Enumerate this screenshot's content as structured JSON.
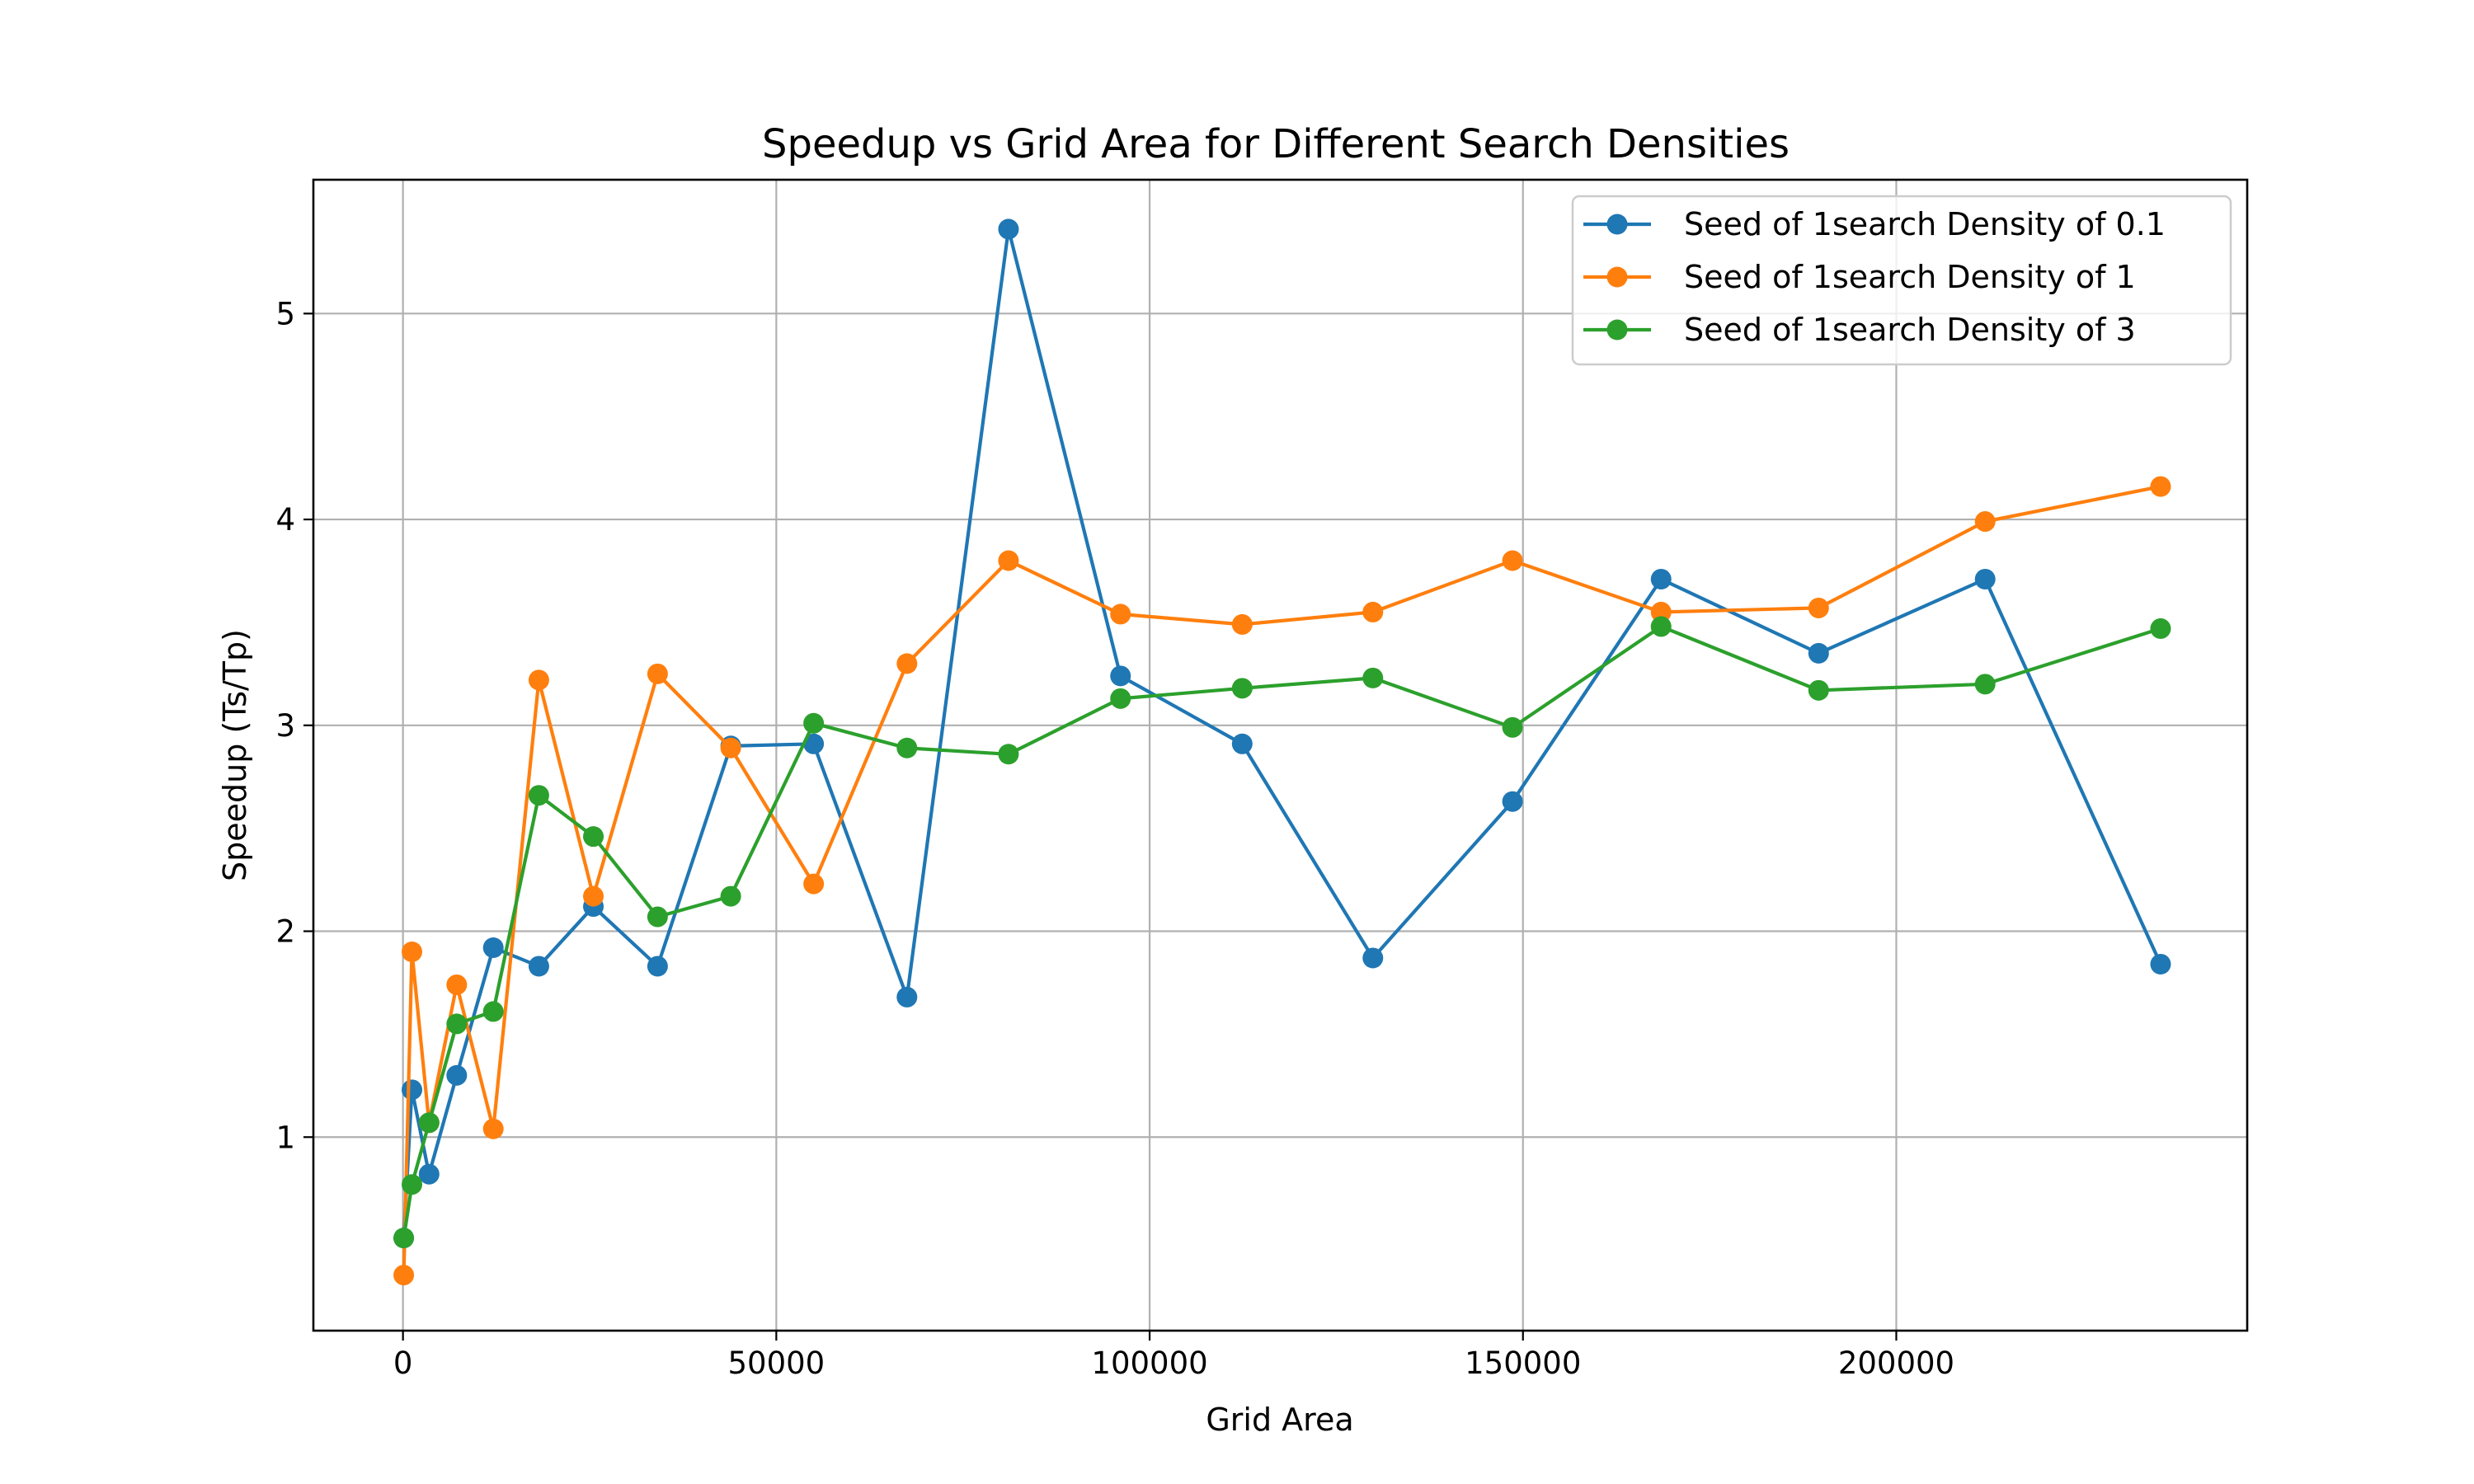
{
  "chart_data": {
    "type": "line",
    "title": "Speedup vs Grid Area for Different Search Densities",
    "xlabel": "Grid Area",
    "ylabel": "Speedup (Ts/Tp)",
    "xlim": [
      -12000,
      247000
    ],
    "ylim": [
      0.06,
      5.65
    ],
    "xticks": [
      0,
      50000,
      100000,
      150000,
      200000
    ],
    "xtick_labels": [
      "0",
      "50000",
      "100000",
      "150000",
      "200000"
    ],
    "yticks": [
      1,
      2,
      3,
      4,
      5
    ],
    "ytick_labels": [
      "1",
      "2",
      "3",
      "4",
      "5"
    ],
    "grid": true,
    "legend_position": "top-right",
    "series": [
      {
        "name": "Seed of 1search Density of 0.1",
        "color": "#1f77b4",
        "x": [
          100,
          1200,
          3500,
          7200,
          12100,
          18200,
          25500,
          34100,
          43900,
          55000,
          67500,
          81100,
          96100,
          112400,
          129900,
          148600,
          168500,
          189600,
          211900,
          235400
        ],
        "y": [
          0.51,
          1.23,
          0.82,
          1.3,
          1.92,
          1.83,
          2.12,
          1.83,
          2.9,
          2.91,
          1.68,
          5.41,
          3.24,
          2.91,
          1.87,
          2.63,
          3.71,
          3.35,
          3.71,
          1.84
        ]
      },
      {
        "name": "Seed of 1search Density of 1",
        "color": "#ff7f0e",
        "x": [
          100,
          1200,
          3500,
          7200,
          12100,
          18200,
          25500,
          34100,
          43900,
          55000,
          67500,
          81100,
          96100,
          112400,
          129900,
          148600,
          168500,
          189600,
          211900,
          235400
        ],
        "y": [
          0.33,
          1.9,
          1.07,
          1.74,
          1.04,
          3.22,
          2.17,
          3.25,
          2.89,
          2.23,
          3.3,
          3.8,
          3.54,
          3.49,
          3.55,
          3.8,
          3.55,
          3.57,
          3.99,
          4.16
        ]
      },
      {
        "name": "Seed of 1search Density of 3",
        "color": "#2ca02c",
        "x": [
          100,
          1200,
          3500,
          7200,
          12100,
          18200,
          25500,
          34100,
          43900,
          55000,
          67500,
          81100,
          96100,
          112400,
          129900,
          148600,
          168500,
          189600,
          211900,
          235400
        ],
        "y": [
          0.51,
          0.77,
          1.07,
          1.55,
          1.61,
          2.66,
          2.46,
          2.07,
          2.17,
          3.01,
          2.89,
          2.86,
          3.13,
          3.18,
          3.23,
          2.99,
          3.48,
          3.17,
          3.2,
          3.47
        ]
      }
    ]
  }
}
